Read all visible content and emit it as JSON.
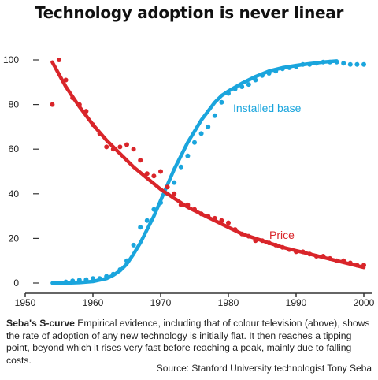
{
  "title": "Technology adoption is never linear",
  "caption": {
    "lead": "Seba's S-curve",
    "text": " Empirical evidence, including that of colour television (above), shows the rate of adoption of any new technology is initially flat. It then reaches a tipping point, beyond which it rises very fast before reaching a peak, mainly due to falling costs."
  },
  "source": "Source: Stanford University technologist Tony Seba",
  "colors": {
    "installed": "#1aa5dd",
    "price": "#d9252a",
    "axis": "#333333",
    "text": "#222222"
  },
  "chart_data": {
    "type": "line",
    "title": "Technology adoption is never linear",
    "xlim": [
      1950,
      2001
    ],
    "ylim": [
      0,
      100
    ],
    "x_ticks": [
      1950,
      1960,
      1970,
      1980,
      1990,
      2000
    ],
    "y_ticks": [
      0,
      20,
      40,
      60,
      80,
      100
    ],
    "grid": false,
    "series": [
      {
        "name": "Installed base",
        "color": "#1aa5dd",
        "fit_x": [
          1954,
          1956,
          1958,
          1960,
          1962,
          1963,
          1964,
          1965,
          1966,
          1967,
          1968,
          1969,
          1970,
          1971,
          1972,
          1973,
          1974,
          1975,
          1976,
          1977,
          1978,
          1979,
          1980,
          1982,
          1984,
          1986,
          1988,
          1990,
          1992,
          1994,
          1996
        ],
        "fit_y": [
          0,
          0,
          0.2,
          0.7,
          2,
          3.5,
          5.5,
          8.5,
          13,
          18,
          24,
          30,
          37,
          44,
          51,
          57,
          63,
          68,
          73,
          77,
          81,
          84,
          86,
          89.5,
          92.5,
          95,
          96.5,
          97.5,
          98.3,
          99,
          99.5
        ],
        "points_x": [
          1955,
          1956,
          1957,
          1958,
          1959,
          1960,
          1961,
          1962,
          1963,
          1964,
          1965,
          1966,
          1967,
          1968,
          1969,
          1970,
          1971,
          1972,
          1973,
          1974,
          1975,
          1976,
          1977,
          1978,
          1979,
          1980,
          1981,
          1982,
          1983,
          1984,
          1985,
          1986,
          1987,
          1988,
          1989,
          1990,
          1991,
          1992,
          1993,
          1994,
          1995,
          1996,
          1997,
          1998,
          1999,
          2000
        ],
        "points_y": [
          0,
          0.5,
          1,
          1.3,
          1.5,
          2,
          2,
          3,
          4,
          6,
          10,
          17,
          25,
          28,
          33,
          36,
          40,
          45,
          52,
          57,
          63,
          67,
          70,
          75,
          81,
          85,
          87,
          88,
          89,
          91,
          93,
          94,
          95,
          96,
          96.5,
          97,
          98,
          98,
          98.5,
          99,
          99,
          99,
          98.5,
          98,
          98,
          98
        ]
      },
      {
        "name": "Price",
        "color": "#d9252a",
        "fit_x": [
          1954,
          1956,
          1958,
          1960,
          1962,
          1964,
          1966,
          1968,
          1970,
          1972,
          1974,
          1976,
          1978,
          1980,
          1982,
          1984,
          1986,
          1988,
          1990,
          1992,
          1994,
          1996,
          1998,
          2000
        ],
        "fit_y": [
          99,
          88,
          79,
          71,
          64,
          58,
          52,
          47,
          42,
          38,
          34,
          31,
          28,
          25,
          22,
          20,
          18,
          16,
          14.5,
          13,
          11.5,
          10,
          8.5,
          7
        ],
        "points_x": [
          1954,
          1955,
          1956,
          1957,
          1958,
          1959,
          1960,
          1961,
          1962,
          1963,
          1964,
          1965,
          1966,
          1967,
          1968,
          1969,
          1970,
          1971,
          1972,
          1973,
          1974,
          1975,
          1976,
          1977,
          1978,
          1979,
          1980,
          1981,
          1982,
          1983,
          1984,
          1985,
          1986,
          1987,
          1988,
          1989,
          1990,
          1991,
          1992,
          1993,
          1994,
          1995,
          1996,
          1997,
          1998,
          1999,
          2000
        ],
        "points_y": [
          80,
          100,
          91,
          83,
          80,
          77,
          71,
          67,
          61,
          60,
          61,
          62,
          60,
          55,
          49,
          48,
          50,
          43,
          40,
          35,
          35,
          33,
          31,
          30,
          29,
          28,
          27,
          24,
          22,
          21,
          19,
          19,
          18,
          17,
          16,
          15,
          14,
          14,
          13,
          12,
          12,
          11,
          10,
          10,
          9,
          8,
          8
        ]
      }
    ],
    "annotations": [
      {
        "text": "Installed base",
        "series": "Installed base"
      },
      {
        "text": "Price",
        "series": "Price"
      }
    ]
  }
}
